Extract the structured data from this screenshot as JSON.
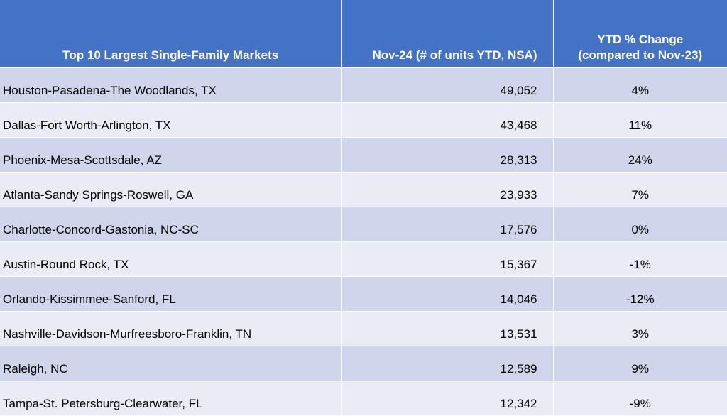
{
  "chart_data": {
    "type": "table",
    "columns": [
      "Top 10 Largest Single-Family Markets",
      "Nov-24 (# of units YTD, NSA)",
      "YTD % Change (compared to Nov-23)"
    ],
    "header_lines": {
      "market": "Top 10 Largest Single-Family Markets",
      "units": "Nov-24 (# of units YTD, NSA)",
      "change_line1": "YTD % Change",
      "change_line2": "(compared to Nov-23)"
    },
    "rows": [
      {
        "market": "Houston-Pasadena-The Woodlands, TX",
        "units": "49,052",
        "change": "4%"
      },
      {
        "market": "Dallas-Fort Worth-Arlington, TX",
        "units": "43,468",
        "change": "11%"
      },
      {
        "market": "Phoenix-Mesa-Scottsdale, AZ",
        "units": "28,313",
        "change": "24%"
      },
      {
        "market": "Atlanta-Sandy Springs-Roswell, GA",
        "units": "23,933",
        "change": "7%"
      },
      {
        "market": "Charlotte-Concord-Gastonia, NC-SC",
        "units": "17,576",
        "change": "0%"
      },
      {
        "market": "Austin-Round Rock, TX",
        "units": "15,367",
        "change": "-1%"
      },
      {
        "market": "Orlando-Kissimmee-Sanford, FL",
        "units": "14,046",
        "change": "-12%"
      },
      {
        "market": "Nashville-Davidson-Murfreesboro-Franklin, TN",
        "units": "13,531",
        "change": "3%"
      },
      {
        "market": "Raleigh, NC",
        "units": "12,589",
        "change": "9%"
      },
      {
        "market": "Tampa-St. Petersburg-Clearwater, FL",
        "units": "12,342",
        "change": "-9%"
      }
    ],
    "colors": {
      "header_bg": "#4472c4",
      "header_text": "#ffffff",
      "row_band_dark": "#cfd5ea",
      "row_band_light": "#e9ebf5"
    }
  }
}
